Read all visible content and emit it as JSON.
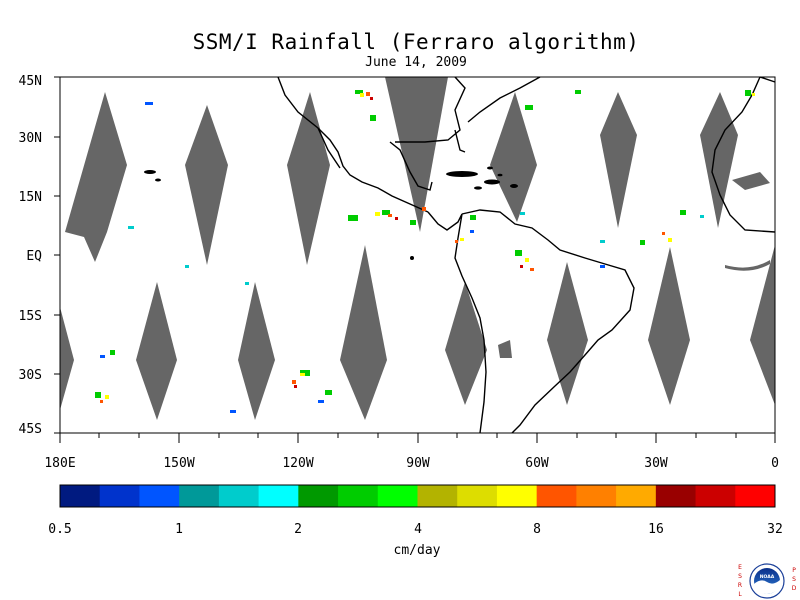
{
  "title": "SSM/I Rainfall (Ferraro algorithm)",
  "subtitle": "June 14, 2009",
  "lat_labels": [
    "45N",
    "30N",
    "15N",
    "EQ",
    "15S",
    "30S",
    "45S"
  ],
  "lon_labels": [
    "180E",
    "150W",
    "120W",
    "90W",
    "60W",
    "30W",
    "0"
  ],
  "colorbar": {
    "colors": [
      "#001a80",
      "#0033cc",
      "#0055ff",
      "#009999",
      "#00cccc",
      "#00ffff",
      "#009900",
      "#00cc00",
      "#00ff00",
      "#b3b300",
      "#dddd00",
      "#ffff00",
      "#ff5500",
      "#ff8000",
      "#ffaa00",
      "#990000",
      "#cc0000",
      "#ff0000"
    ],
    "tick_labels": [
      "0.5",
      "1",
      "2",
      "4",
      "8",
      "16",
      "32"
    ],
    "units": "cm/day"
  },
  "colors": {
    "land_outline": "#000000",
    "no_data_swath": "#666666",
    "background": "#ffffff"
  },
  "logo": {
    "name": "noaa-logo",
    "left_text": "ESRL",
    "right_text": "PSD",
    "center_text": "NOAA"
  }
}
